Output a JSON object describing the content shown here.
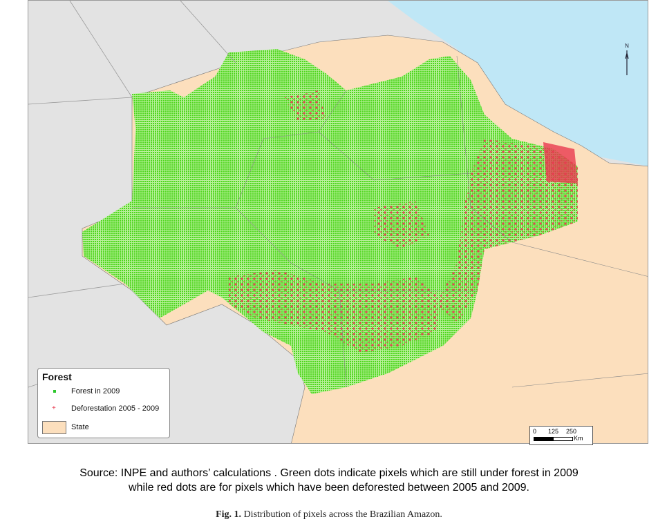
{
  "map": {
    "colors": {
      "ocean": "#bfe7f6",
      "neighbors": "#e3e3e3",
      "state": "#fcdfbd",
      "forest": "#5ee02c",
      "deforestation": "#e8394f"
    },
    "legend": {
      "title": "Forest",
      "items": [
        {
          "label": "Forest in 2009",
          "symbol": "green-dot"
        },
        {
          "label": "Deforestation 2005 - 2009",
          "symbol": "red-plus"
        },
        {
          "label": "State",
          "symbol": "beige-box"
        }
      ]
    },
    "scale": {
      "ticks": [
        "0",
        "125",
        "250"
      ],
      "unit": "Km"
    },
    "north_label": "N"
  },
  "source_text": {
    "line1": "Source: INPE and authors’ calculations . Green dots indicate pixels which are still under forest in 2009",
    "line2": "while red dots are for pixels which have been deforested between 2005 and 2009."
  },
  "caption": {
    "label": "Fig. 1.",
    "text": " Distribution of pixels across the Brazilian Amazon."
  }
}
